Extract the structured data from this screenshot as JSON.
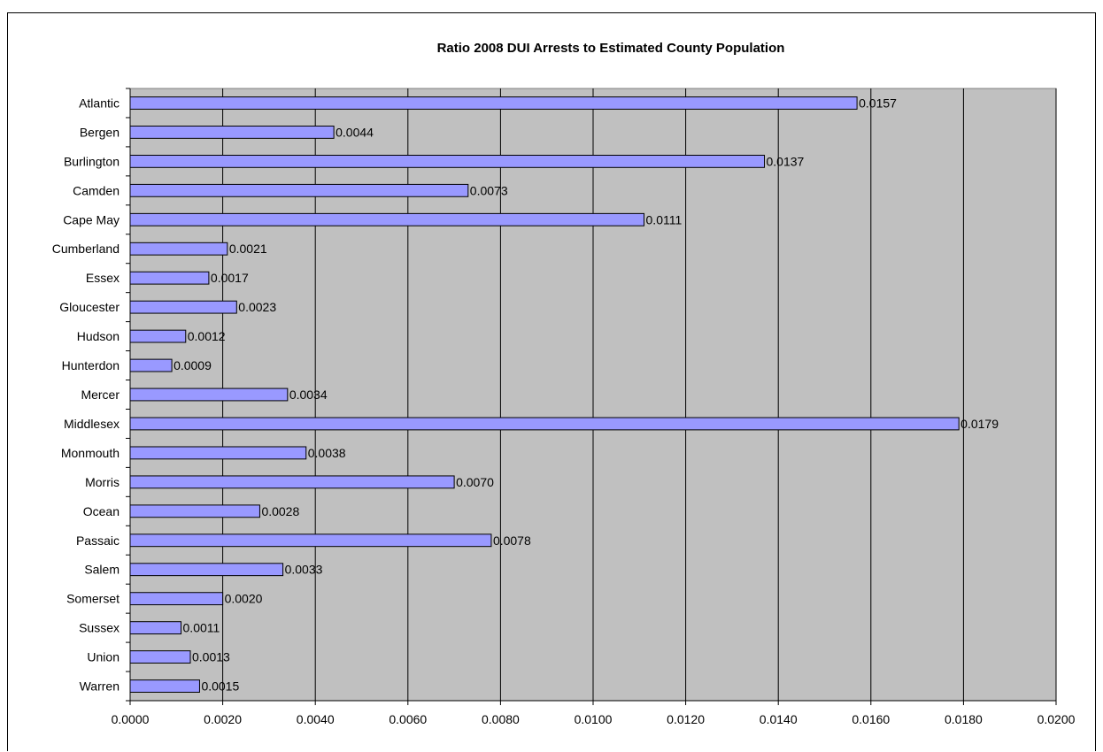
{
  "chart_data": {
    "type": "bar",
    "orientation": "horizontal",
    "title": "Ratio 2008 DUI Arrests to Estimated County Population",
    "xlabel": "",
    "ylabel": "",
    "categories": [
      "Atlantic",
      "Bergen",
      "Burlington",
      "Camden",
      "Cape May",
      "Cumberland",
      "Essex",
      "Gloucester",
      "Hudson",
      "Hunterdon",
      "Mercer",
      "Middlesex",
      "Monmouth",
      "Morris",
      "Ocean",
      "Passaic",
      "Salem",
      "Somerset",
      "Sussex",
      "Union",
      "Warren"
    ],
    "values": [
      0.0157,
      0.0044,
      0.0137,
      0.0073,
      0.0111,
      0.0021,
      0.0017,
      0.0023,
      0.0012,
      0.0009,
      0.0034,
      0.0179,
      0.0038,
      0.007,
      0.0028,
      0.0078,
      0.0033,
      0.002,
      0.0011,
      0.0013,
      0.0015
    ],
    "data_labels": [
      "0.0157",
      "0.0044",
      "0.0137",
      "0.0073",
      "0.0111",
      "0.0021",
      "0.0017",
      "0.0023",
      "0.0012",
      "0.0009",
      "0.0034",
      "0.0179",
      "0.0038",
      "0.0070",
      "0.0028",
      "0.0078",
      "0.0033",
      "0.0020",
      "0.0011",
      "0.0013",
      "0.0015"
    ],
    "xlim": [
      0,
      0.02
    ],
    "x_ticks": [
      0,
      0.002,
      0.004,
      0.006,
      0.008,
      0.01,
      0.012,
      0.014,
      0.016,
      0.018,
      0.02
    ],
    "x_tick_labels": [
      "0.0000",
      "0.0020",
      "0.0040",
      "0.0060",
      "0.0080",
      "0.0100",
      "0.0120",
      "0.0140",
      "0.0160",
      "0.0180",
      "0.0200"
    ],
    "grid": "vertical",
    "legend": "none",
    "colors": {
      "bar_fill": "#9999ff",
      "bar_stroke": "#000000",
      "plot_background": "#c0c0c0",
      "gridline": "#000000"
    }
  }
}
